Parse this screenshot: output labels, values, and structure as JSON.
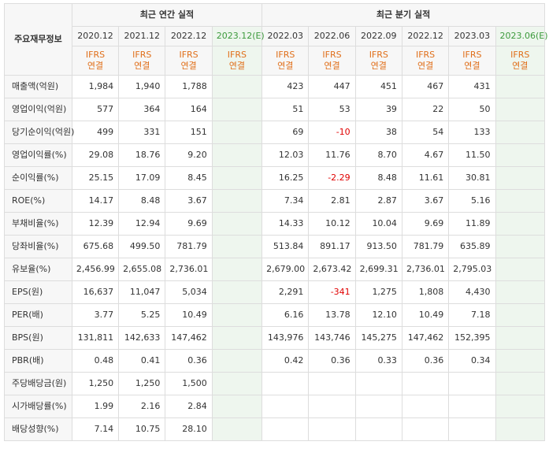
{
  "header": {
    "corner": "주요재무정보",
    "annual_title": "최근 연간 실적",
    "quarterly_title": "최근 분기 실적",
    "annual_periods": [
      "2020.12",
      "2021.12",
      "2022.12",
      "2023.12(E)"
    ],
    "quarterly_periods": [
      "2022.03",
      "2022.06",
      "2022.09",
      "2022.12",
      "2023.03",
      "2023.06(E)"
    ],
    "ifrs_line1": "IFRS",
    "ifrs_line2": "연결"
  },
  "colors": {
    "ifrs": "#e06f1a",
    "estimate_header": "#3c9a3c",
    "negative": "#e00000",
    "estimate_bg": "#eef6ee"
  },
  "rows": [
    {
      "label": "매출액(억원)",
      "annual": [
        "1,984",
        "1,940",
        "1,788",
        ""
      ],
      "quarterly": [
        "423",
        "447",
        "451",
        "467",
        "431",
        ""
      ]
    },
    {
      "label": "영업이익(억원)",
      "annual": [
        "577",
        "364",
        "164",
        ""
      ],
      "quarterly": [
        "51",
        "53",
        "39",
        "22",
        "50",
        ""
      ]
    },
    {
      "label": "당기순이익(억원)",
      "annual": [
        "499",
        "331",
        "151",
        ""
      ],
      "quarterly": [
        "69",
        "-10",
        "38",
        "54",
        "133",
        ""
      ]
    },
    {
      "label": "영업이익률(%)",
      "annual": [
        "29.08",
        "18.76",
        "9.20",
        ""
      ],
      "quarterly": [
        "12.03",
        "11.76",
        "8.70",
        "4.67",
        "11.50",
        ""
      ]
    },
    {
      "label": "순이익률(%)",
      "annual": [
        "25.15",
        "17.09",
        "8.45",
        ""
      ],
      "quarterly": [
        "16.25",
        "-2.29",
        "8.48",
        "11.61",
        "30.81",
        ""
      ]
    },
    {
      "label": "ROE(%)",
      "annual": [
        "14.17",
        "8.48",
        "3.67",
        ""
      ],
      "quarterly": [
        "7.34",
        "2.81",
        "2.87",
        "3.67",
        "5.16",
        ""
      ]
    },
    {
      "label": "부채비율(%)",
      "annual": [
        "12.39",
        "12.94",
        "9.69",
        ""
      ],
      "quarterly": [
        "14.33",
        "10.12",
        "10.04",
        "9.69",
        "11.89",
        ""
      ]
    },
    {
      "label": "당좌비율(%)",
      "annual": [
        "675.68",
        "499.50",
        "781.79",
        ""
      ],
      "quarterly": [
        "513.84",
        "891.17",
        "913.50",
        "781.79",
        "635.89",
        ""
      ]
    },
    {
      "label": "유보율(%)",
      "annual": [
        "2,456.99",
        "2,655.08",
        "2,736.01",
        ""
      ],
      "quarterly": [
        "2,679.00",
        "2,673.42",
        "2,699.31",
        "2,736.01",
        "2,795.03",
        ""
      ]
    },
    {
      "label": "EPS(원)",
      "annual": [
        "16,637",
        "11,047",
        "5,034",
        ""
      ],
      "quarterly": [
        "2,291",
        "-341",
        "1,275",
        "1,808",
        "4,430",
        ""
      ]
    },
    {
      "label": "PER(배)",
      "annual": [
        "3.77",
        "5.25",
        "10.49",
        ""
      ],
      "quarterly": [
        "6.16",
        "13.78",
        "12.10",
        "10.49",
        "7.18",
        ""
      ]
    },
    {
      "label": "BPS(원)",
      "annual": [
        "131,811",
        "142,633",
        "147,462",
        ""
      ],
      "quarterly": [
        "143,976",
        "143,746",
        "145,275",
        "147,462",
        "152,395",
        ""
      ]
    },
    {
      "label": "PBR(배)",
      "annual": [
        "0.48",
        "0.41",
        "0.36",
        ""
      ],
      "quarterly": [
        "0.42",
        "0.36",
        "0.33",
        "0.36",
        "0.34",
        ""
      ]
    },
    {
      "label": "주당배당금(원)",
      "annual": [
        "1,250",
        "1,250",
        "1,500",
        ""
      ],
      "quarterly": [
        "",
        "",
        "",
        "",
        "",
        ""
      ]
    },
    {
      "label": "시가배당률(%)",
      "annual": [
        "1.99",
        "2.16",
        "2.84",
        ""
      ],
      "quarterly": [
        "",
        "",
        "",
        "",
        "",
        ""
      ]
    },
    {
      "label": "배당성향(%)",
      "annual": [
        "7.14",
        "10.75",
        "28.10",
        ""
      ],
      "quarterly": [
        "",
        "",
        "",
        "",
        "",
        ""
      ]
    }
  ]
}
